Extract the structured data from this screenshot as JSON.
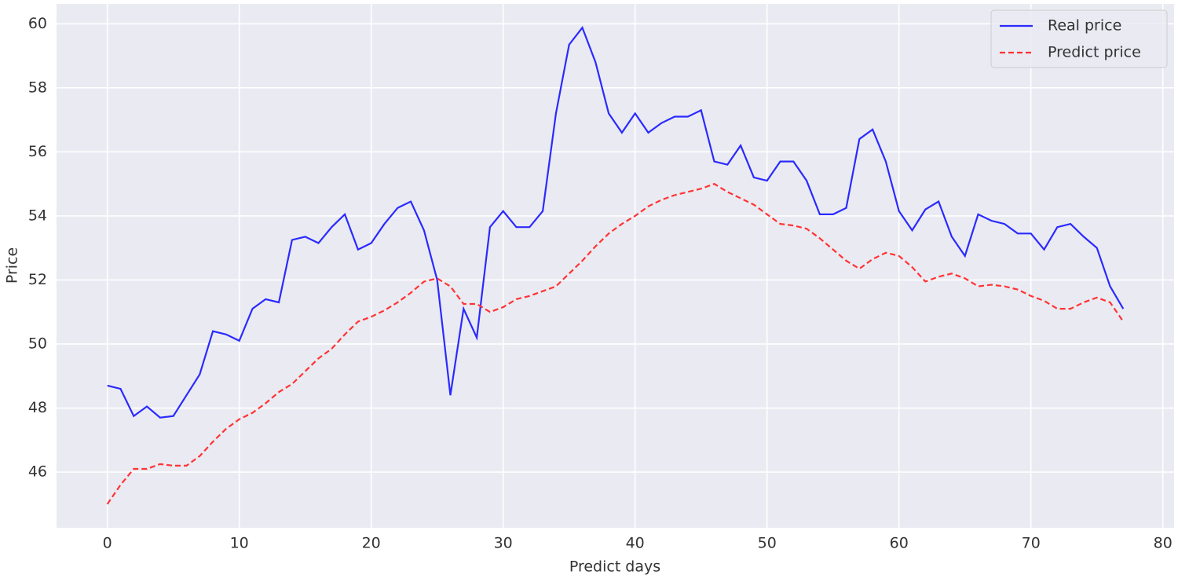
{
  "chart_data": {
    "type": "line",
    "xlabel": "Predict days",
    "ylabel": "Price",
    "x": [
      0,
      1,
      2,
      3,
      4,
      5,
      6,
      7,
      8,
      9,
      10,
      11,
      12,
      13,
      14,
      15,
      16,
      17,
      18,
      19,
      20,
      21,
      22,
      23,
      24,
      25,
      26,
      27,
      28,
      29,
      30,
      31,
      32,
      33,
      34,
      35,
      36,
      37,
      38,
      39,
      40,
      41,
      42,
      43,
      44,
      45,
      46,
      47,
      48,
      49,
      50,
      51,
      52,
      53,
      54,
      55,
      56,
      57,
      58,
      59,
      60,
      61,
      62,
      63,
      64,
      65,
      66,
      67,
      68,
      69,
      70,
      71,
      72,
      73,
      74,
      75,
      76,
      77
    ],
    "series": [
      {
        "name": "Real price",
        "color": "#2a2aff",
        "linestyle": "solid",
        "values": [
          48.7,
          48.6,
          47.75,
          48.05,
          47.7,
          47.75,
          48.4,
          49.05,
          50.4,
          50.3,
          50.1,
          51.1,
          51.4,
          51.3,
          53.25,
          53.35,
          53.15,
          53.65,
          54.05,
          52.95,
          53.15,
          53.75,
          54.25,
          54.45,
          53.55,
          52.0,
          48.4,
          51.1,
          50.2,
          53.65,
          54.15,
          53.65,
          53.65,
          54.15,
          57.2,
          59.35,
          59.88,
          58.8,
          57.2,
          56.6,
          57.2,
          56.6,
          56.9,
          57.1,
          57.1,
          57.3,
          55.7,
          55.6,
          56.2,
          55.2,
          55.1,
          55.7,
          55.7,
          55.1,
          54.05,
          54.05,
          54.25,
          56.4,
          56.7,
          55.7,
          54.15,
          53.55,
          54.2,
          54.45,
          53.35,
          52.75,
          54.05,
          53.85,
          53.75,
          53.45,
          53.45,
          52.95,
          53.65,
          53.75,
          53.35,
          53.0,
          51.8,
          51.1
        ]
      },
      {
        "name": "Predict price",
        "color": "#ff3333",
        "linestyle": "dashed",
        "values": [
          45.0,
          45.6,
          46.1,
          46.1,
          46.25,
          46.2,
          46.2,
          46.5,
          46.95,
          47.35,
          47.65,
          47.85,
          48.15,
          48.5,
          48.75,
          49.15,
          49.55,
          49.85,
          50.3,
          50.7,
          50.85,
          51.05,
          51.3,
          51.6,
          51.95,
          52.05,
          51.8,
          51.25,
          51.25,
          51.0,
          51.15,
          51.4,
          51.5,
          51.65,
          51.8,
          52.2,
          52.6,
          53.05,
          53.45,
          53.75,
          54.0,
          54.3,
          54.5,
          54.65,
          54.75,
          54.85,
          55.0,
          54.75,
          54.55,
          54.35,
          54.05,
          53.75,
          53.7,
          53.6,
          53.3,
          52.95,
          52.6,
          52.35,
          52.65,
          52.85,
          52.75,
          52.4,
          51.95,
          52.1,
          52.2,
          52.05,
          51.8,
          51.85,
          51.8,
          51.7,
          51.5,
          51.35,
          51.1,
          51.1,
          51.3,
          51.45,
          51.3,
          50.7
        ]
      }
    ],
    "xlim": [
      -3.85,
      80.85
    ],
    "xticks": [
      0,
      10,
      20,
      30,
      40,
      50,
      60,
      70,
      80
    ],
    "ylim": [
      44.26,
      60.62
    ],
    "yticks": [
      46,
      48,
      50,
      52,
      54,
      56,
      58,
      60
    ],
    "grid": true,
    "legend": "upper right",
    "background": "#eaeaf2"
  }
}
